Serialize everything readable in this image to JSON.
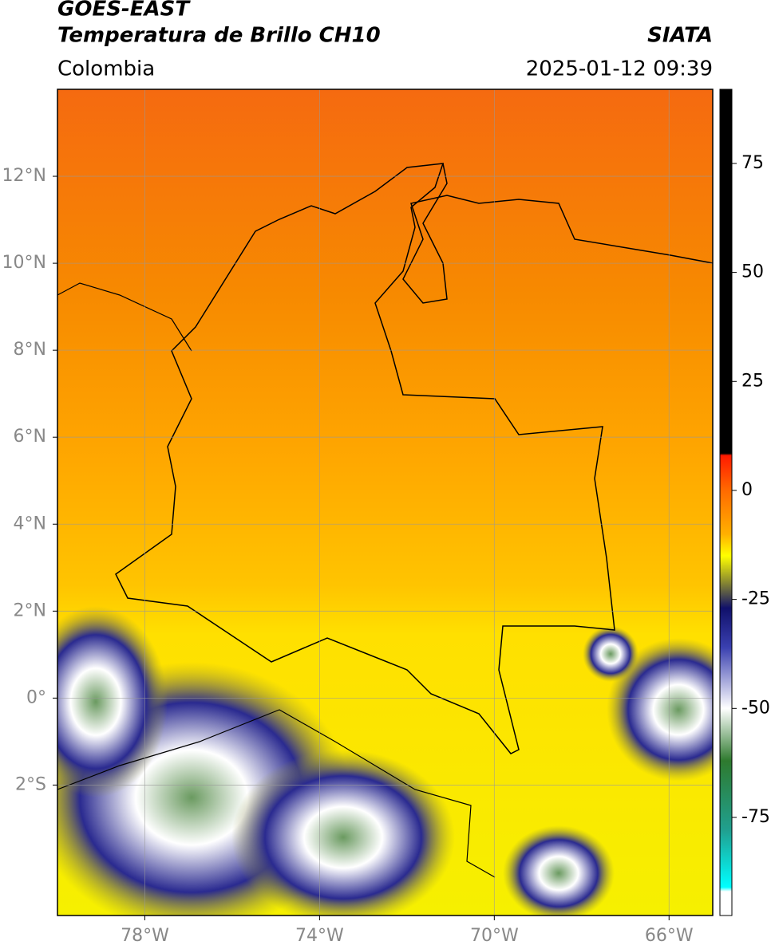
{
  "header": {
    "title": "GOES-EAST",
    "subtitle": "Temperatura de Brillo CH10",
    "region": "Colombia",
    "source": "SIATA",
    "datetime": "2025-01-12 09:39"
  },
  "map": {
    "xlim": [
      -80,
      -65
    ],
    "ylim": [
      -5,
      14
    ],
    "xticks": [
      {
        "value": -78,
        "label": "78°W"
      },
      {
        "value": -74,
        "label": "74°W"
      },
      {
        "value": -70,
        "label": "70°W"
      },
      {
        "value": -66,
        "label": "66°W"
      }
    ],
    "yticks": [
      {
        "value": 12,
        "label": "12°N"
      },
      {
        "value": 10,
        "label": "10°N"
      },
      {
        "value": 8,
        "label": "8°N"
      },
      {
        "value": 6,
        "label": "6°N"
      },
      {
        "value": 4,
        "label": "4°N"
      },
      {
        "value": 2,
        "label": "2°N"
      },
      {
        "value": 0,
        "label": "0°"
      },
      {
        "value": -2,
        "label": "2°S"
      }
    ],
    "grid": true
  },
  "colorbar": {
    "lim": [
      -97.5,
      92
    ],
    "ticks": [
      75,
      50,
      25,
      0,
      -25,
      -50,
      -75
    ],
    "stops": [
      {
        "value": 92,
        "color": "#000000"
      },
      {
        "value": 8.5,
        "color": "#000000"
      },
      {
        "value": 8,
        "color": "#ff1a00"
      },
      {
        "value": 0,
        "color": "#ff6a00"
      },
      {
        "value": -10,
        "color": "#ffb000"
      },
      {
        "value": -15,
        "color": "#ffff00"
      },
      {
        "value": -21,
        "color": "#8a8a30"
      },
      {
        "value": -27,
        "color": "#10106a"
      },
      {
        "value": -36,
        "color": "#3a40b0"
      },
      {
        "value": -50,
        "color": "#ffffff"
      },
      {
        "value": -62,
        "color": "#2e7a2e"
      },
      {
        "value": -78,
        "color": "#20a090"
      },
      {
        "value": -91,
        "color": "#00ffff"
      },
      {
        "value": -92,
        "color": "#ffffff"
      },
      {
        "value": -97.5,
        "color": "#ffffff"
      }
    ]
  }
}
